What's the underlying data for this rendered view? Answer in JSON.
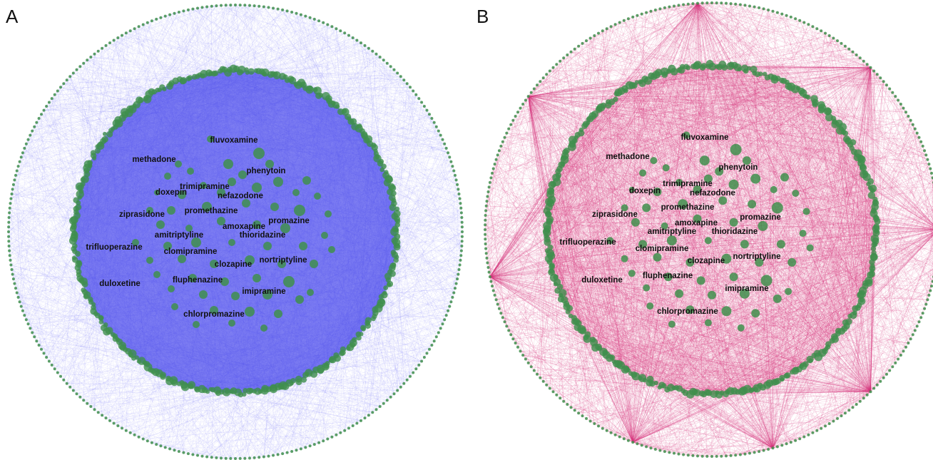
{
  "panels": [
    {
      "id": "A",
      "letter": "A",
      "edge_color": "#5b5bf2",
      "inner_fill": "#6a6af0",
      "node_color": "#3f8f4c",
      "labels": [
        "fluvoxamine",
        "methadone",
        "phenytoin",
        "trimipramine",
        "doxepin",
        "nefazodone",
        "promethazine",
        "ziprasidone",
        "promazine",
        "amoxapine",
        "amitriptyline",
        "thioridazine",
        "trifluoperazine",
        "clomipramine",
        "nortriptyline",
        "clozapine",
        "fluphenazine",
        "duloxetine",
        "imipramine",
        "chlorpromazine"
      ]
    },
    {
      "id": "B",
      "letter": "B",
      "edge_color": "#d6337a",
      "inner_fill": "#f3c6d8",
      "node_color": "#3f8f4c",
      "labels": [
        "fluvoxamine",
        "methadone",
        "phenytoin",
        "trimipramine",
        "doxepin",
        "nefazodone",
        "promethazine",
        "ziprasidone",
        "promazine",
        "amoxapine",
        "amitriptyline",
        "thioridazine",
        "trifluoperazine",
        "clomipramine",
        "nortriptyline",
        "clozapine",
        "fluphenazine",
        "duloxetine",
        "imipramine",
        "chlorpromazine"
      ]
    }
  ]
}
